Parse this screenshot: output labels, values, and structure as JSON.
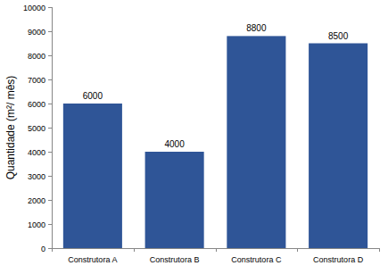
{
  "chart_data": {
    "type": "bar",
    "ylabel": "Quantidade (m²/ mês)",
    "categories": [
      "Construtora A",
      "Construtora B",
      "Construtora C",
      "Construtora D"
    ],
    "values": [
      6000,
      4000,
      8800,
      8500
    ],
    "color": "#2f5597",
    "ylim": [
      0,
      10000
    ],
    "yticks": [
      0,
      1000,
      2000,
      3000,
      4000,
      5000,
      6000,
      7000,
      8000,
      9000,
      10000
    ],
    "grid": false,
    "data_labels": true
  }
}
